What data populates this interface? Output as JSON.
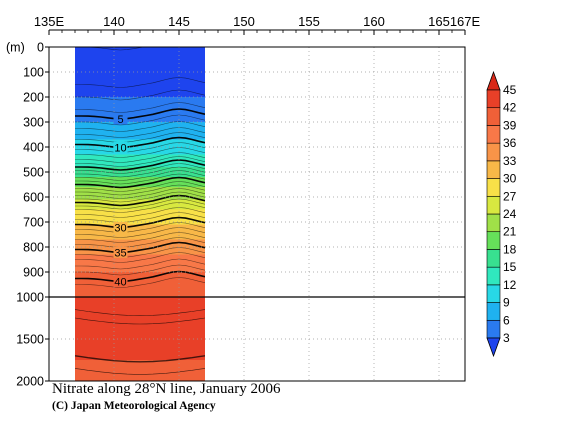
{
  "chart_data": {
    "type": "heatmap",
    "title": "Nitrate along 28°N line, January 2006",
    "credit": "(C) Japan Meteorological Agency",
    "x_axis": {
      "ticks": [
        "135E",
        "140",
        "145",
        "150",
        "155",
        "160",
        "165",
        "167E"
      ],
      "tick_values": [
        135,
        140,
        145,
        150,
        155,
        160,
        165,
        167
      ],
      "range": [
        135,
        167
      ]
    },
    "y_axis": {
      "unit": "(m)",
      "ticks_upper": [
        "0",
        "100",
        "200",
        "300",
        "400",
        "500",
        "600",
        "700",
        "800",
        "900",
        "1000"
      ],
      "tick_values_upper": [
        0,
        100,
        200,
        300,
        400,
        500,
        600,
        700,
        800,
        900,
        1000
      ],
      "ticks_lower": [
        "1500",
        "2000"
      ],
      "tick_values_lower": [
        1500,
        2000
      ],
      "range": [
        0,
        2000
      ],
      "scale_break_depth": 1000,
      "inverted": true
    },
    "data_extent_lon": [
      137,
      147
    ],
    "colorbar": {
      "levels": [
        "3",
        "6",
        "9",
        "12",
        "15",
        "18",
        "21",
        "24",
        "27",
        "30",
        "33",
        "36",
        "39",
        "42",
        "45"
      ],
      "colors": [
        "#1e44ee",
        "#2a7af0",
        "#1fb2f0",
        "#28d8e6",
        "#30e8be",
        "#38e090",
        "#66e05a",
        "#a0e048",
        "#d8e840",
        "#f8e048",
        "#f8b848",
        "#f89448",
        "#f87848",
        "#f06038",
        "#e84028",
        "#d82818"
      ],
      "extend_both": true
    },
    "contour_labels": [
      "5",
      "10",
      "30",
      "35",
      "40"
    ],
    "depth_bands": [
      {
        "depth": 0,
        "value": 1
      },
      {
        "depth": 150,
        "value": 2
      },
      {
        "depth": 250,
        "value": 4
      },
      {
        "depth": 350,
        "value": 8
      },
      {
        "depth": 450,
        "value": 13
      },
      {
        "depth": 550,
        "value": 20
      },
      {
        "depth": 650,
        "value": 27
      },
      {
        "depth": 750,
        "value": 32
      },
      {
        "depth": 850,
        "value": 37
      },
      {
        "depth": 950,
        "value": 41
      },
      {
        "depth": 1000,
        "value": 42
      },
      {
        "depth": 1500,
        "value": 43
      },
      {
        "depth": 2000,
        "value": 41
      }
    ]
  }
}
